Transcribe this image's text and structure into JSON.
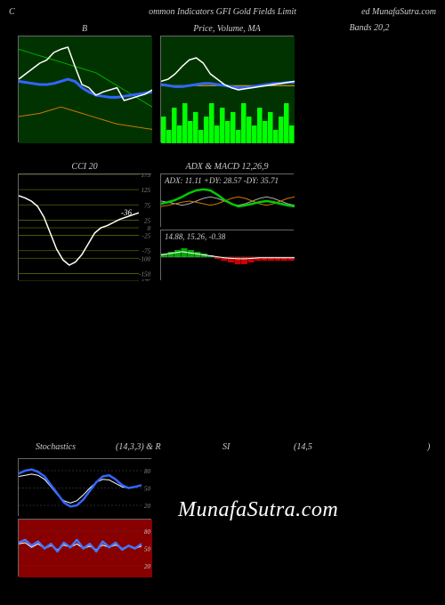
{
  "header": {
    "left": "C",
    "center": "ommon Indicators GFI Gold Fields Limit",
    "right": "ed MunafaSutra.com"
  },
  "watermark": "MunafaSutra.com",
  "row1": {
    "panelA": {
      "title": "B",
      "bg": "#003300",
      "lines": {
        "white": [
          0.4,
          0.35,
          0.3,
          0.25,
          0.22,
          0.15,
          0.12,
          0.1,
          0.28,
          0.45,
          0.48,
          0.55,
          0.52,
          0.5,
          0.48,
          0.6,
          0.58,
          0.56,
          0.54,
          0.5
        ],
        "green": [
          0.12,
          0.14,
          0.16,
          0.18,
          0.2,
          0.22,
          0.24,
          0.26,
          0.28,
          0.3,
          0.32,
          0.34,
          0.38,
          0.42,
          0.46,
          0.5,
          0.54,
          0.58,
          0.62,
          0.66
        ],
        "blue": [
          0.42,
          0.43,
          0.44,
          0.45,
          0.45,
          0.44,
          0.42,
          0.4,
          0.42,
          0.48,
          0.52,
          0.55,
          0.56,
          0.57,
          0.57,
          0.56,
          0.55,
          0.54,
          0.53,
          0.52
        ],
        "orange": [
          0.75,
          0.74,
          0.73,
          0.72,
          0.7,
          0.68,
          0.66,
          0.68,
          0.7,
          0.72,
          0.74,
          0.76,
          0.78,
          0.8,
          0.82,
          0.83,
          0.84,
          0.85,
          0.86,
          0.87
        ]
      },
      "colors": {
        "white": "#ffffff",
        "green": "#00aa00",
        "blue": "#3366ff",
        "orange": "#cc7700"
      }
    },
    "panelB": {
      "title": "Price, Volume, MA",
      "bg": "#003300",
      "bars": [
        0.6,
        0.3,
        0.8,
        0.4,
        0.9,
        0.5,
        0.7,
        0.3,
        0.6,
        0.9,
        0.4,
        0.8,
        0.5,
        0.7,
        0.3,
        0.9,
        0.6,
        0.4,
        0.8,
        0.5,
        0.7,
        0.3,
        0.6,
        0.9,
        0.4
      ],
      "barColor": "#00ff00",
      "lines": {
        "white": [
          0.42,
          0.4,
          0.35,
          0.28,
          0.22,
          0.2,
          0.25,
          0.35,
          0.4,
          0.45,
          0.48,
          0.5,
          0.49,
          0.48,
          0.47,
          0.46,
          0.45,
          0.44,
          0.43,
          0.42
        ],
        "blue": [
          0.45,
          0.46,
          0.47,
          0.47,
          0.46,
          0.45,
          0.44,
          0.44,
          0.45,
          0.46,
          0.47,
          0.48,
          0.48,
          0.47,
          0.46,
          0.45,
          0.44,
          0.44,
          0.43,
          0.43
        ],
        "yellow": [
          0.46,
          0.46,
          0.46,
          0.46,
          0.46,
          0.46,
          0.46,
          0.46,
          0.46,
          0.46,
          0.46,
          0.46,
          0.46,
          0.46,
          0.46,
          0.46,
          0.46,
          0.46,
          0.46,
          0.46
        ]
      },
      "colors": {
        "white": "#ffffff",
        "blue": "#3366ff",
        "yellow": "#ffaa00"
      }
    },
    "panelC": {
      "title": "Bands 20,2"
    }
  },
  "row2": {
    "panelA": {
      "title": "CCI 20",
      "bg": "#000000",
      "grid": {
        "levels": [
          175,
          125,
          75,
          25,
          0,
          -25,
          -75,
          -100,
          -150,
          -175
        ],
        "h": 120
      },
      "line": [
        0.2,
        0.22,
        0.25,
        0.3,
        0.4,
        0.55,
        0.7,
        0.8,
        0.85,
        0.82,
        0.75,
        0.65,
        0.55,
        0.5,
        0.48,
        0.45,
        0.42,
        0.4,
        0.38,
        0.36
      ],
      "lineColor": "#ffffff",
      "endLabel": "-36",
      "gridColor": "#556600"
    },
    "panelB_top": {
      "title": "ADX  & MACD 12,26,9",
      "info": "ADX: 11.11 +DY: 28.57 -DY: 35.71",
      "bg": "#000000",
      "lines": {
        "green": [
          0.55,
          0.52,
          0.48,
          0.42,
          0.35,
          0.3,
          0.28,
          0.3,
          0.38,
          0.48,
          0.55,
          0.6,
          0.58,
          0.55,
          0.52,
          0.5,
          0.52,
          0.55,
          0.58,
          0.6
        ],
        "orange": [
          0.6,
          0.58,
          0.55,
          0.52,
          0.5,
          0.52,
          0.55,
          0.58,
          0.55,
          0.5,
          0.45,
          0.42,
          0.45,
          0.5,
          0.55,
          0.58,
          0.55,
          0.5,
          0.45,
          0.42
        ],
        "white": [
          0.5,
          0.52,
          0.55,
          0.58,
          0.55,
          0.5,
          0.45,
          0.42,
          0.45,
          0.5,
          0.55,
          0.58,
          0.55,
          0.5,
          0.45,
          0.42,
          0.45,
          0.5,
          0.55,
          0.58
        ]
      },
      "colors": {
        "green": "#00cc00",
        "orange": "#cc7700",
        "white": "#aaaaaa"
      }
    },
    "panelB_bot": {
      "info": "14.88, 15.26, -0.38",
      "bg": "#000000",
      "bars": {
        "pos": [
          0.1,
          0.15,
          0.2,
          0.25,
          0.2,
          0.15,
          0.1,
          0.05,
          0,
          0,
          0,
          0,
          0,
          0,
          0,
          0,
          0,
          0,
          0,
          0
        ],
        "neg": [
          0,
          0,
          0,
          0,
          0,
          0,
          0,
          0,
          0.05,
          0.1,
          0.15,
          0.2,
          0.2,
          0.15,
          0.1,
          0.1,
          0.1,
          0.1,
          0.1,
          0.1
        ]
      },
      "posColor": "#00aa00",
      "negColor": "#cc0000",
      "line": [
        0.48,
        0.46,
        0.44,
        0.42,
        0.44,
        0.46,
        0.48,
        0.5,
        0.52,
        0.54,
        0.55,
        0.56,
        0.56,
        0.55,
        0.54,
        0.54,
        0.54,
        0.54,
        0.54,
        0.54
      ],
      "lineColor": "#ffffff"
    }
  },
  "row3": {
    "titleLeft": "Stochastics",
    "titleLeftParam": "(14,3,3) & R",
    "titleRight": "SI",
    "titleRightParam": "(14,5",
    "titleRightEnd": ")",
    "panelA_top": {
      "bg": "#000000",
      "lines": {
        "blueThick": [
          0.25,
          0.2,
          0.18,
          0.22,
          0.3,
          0.45,
          0.6,
          0.75,
          0.82,
          0.8,
          0.7,
          0.55,
          0.4,
          0.3,
          0.28,
          0.35,
          0.45,
          0.5,
          0.48,
          0.45
        ],
        "white": [
          0.3,
          0.28,
          0.26,
          0.28,
          0.35,
          0.48,
          0.62,
          0.72,
          0.76,
          0.72,
          0.62,
          0.5,
          0.4,
          0.35,
          0.36,
          0.42,
          0.48,
          0.5,
          0.48,
          0.46
        ]
      },
      "colors": {
        "blueThick": "#3366ff",
        "white": "#ffffff"
      },
      "yLabels": [
        "80",
        "50",
        "20"
      ],
      "gridColor": "#555555"
    },
    "panelA_bot": {
      "bg": "#880000",
      "lines": {
        "blueThick": [
          0.4,
          0.35,
          0.45,
          0.38,
          0.5,
          0.42,
          0.55,
          0.4,
          0.48,
          0.35,
          0.5,
          0.42,
          0.55,
          0.38,
          0.48,
          0.4,
          0.52,
          0.45,
          0.5,
          0.42
        ],
        "white": [
          0.42,
          0.4,
          0.48,
          0.42,
          0.5,
          0.45,
          0.52,
          0.44,
          0.48,
          0.42,
          0.5,
          0.46,
          0.52,
          0.44,
          0.48,
          0.44,
          0.5,
          0.46,
          0.5,
          0.46
        ]
      },
      "colors": {
        "blueThick": "#4477ff",
        "white": "#ffffff"
      },
      "yLabels": [
        "80",
        "50",
        "20"
      ],
      "gridColor": "#663333"
    }
  }
}
